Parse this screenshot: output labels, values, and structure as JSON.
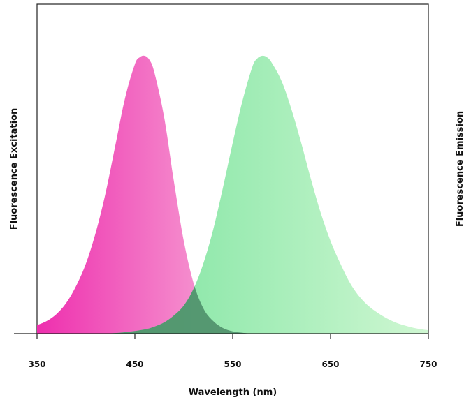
{
  "chart_data": {
    "type": "area",
    "xlabel": "Wavelength (nm)",
    "ylabel": "Fluorescence Excitation",
    "ylabel_right": "Fluorescence Emission",
    "xlim": [
      350,
      750
    ],
    "ylim": [
      0,
      1
    ],
    "x_ticks": [
      350,
      450,
      550,
      650,
      750
    ],
    "grid": false,
    "legend": "none",
    "series": [
      {
        "role": "excitation",
        "peak_x": 460,
        "peak_y": 0.99,
        "x": [
          350,
          360,
          370,
          380,
          390,
          400,
          410,
          420,
          430,
          440,
          450,
          455,
          460,
          465,
          470,
          480,
          490,
          500,
          510,
          520,
          530,
          540,
          550,
          560,
          570
        ],
        "values": [
          0.03,
          0.045,
          0.07,
          0.11,
          0.17,
          0.25,
          0.36,
          0.5,
          0.67,
          0.84,
          0.96,
          0.985,
          0.99,
          0.975,
          0.93,
          0.77,
          0.54,
          0.33,
          0.18,
          0.09,
          0.045,
          0.02,
          0.008,
          0.003,
          0.0
        ],
        "color_start": "#ee2fae",
        "color_end": "#f7b0d9"
      },
      {
        "role": "emission",
        "peak_x": 580,
        "peak_y": 0.99,
        "x": [
          420,
          440,
          460,
          470,
          480,
          490,
          500,
          510,
          520,
          530,
          540,
          550,
          560,
          570,
          575,
          580,
          585,
          590,
          600,
          610,
          620,
          630,
          640,
          650,
          660,
          670,
          680,
          690,
          700,
          710,
          720,
          730,
          740,
          750
        ],
        "values": [
          0.0,
          0.005,
          0.015,
          0.025,
          0.04,
          0.065,
          0.1,
          0.16,
          0.25,
          0.37,
          0.52,
          0.68,
          0.83,
          0.95,
          0.98,
          0.99,
          0.985,
          0.965,
          0.9,
          0.8,
          0.68,
          0.55,
          0.43,
          0.33,
          0.25,
          0.18,
          0.13,
          0.095,
          0.07,
          0.05,
          0.035,
          0.025,
          0.017,
          0.012
        ],
        "color_start": "#7ae39e",
        "color_end": "#cff7d2"
      }
    ]
  },
  "style": {
    "overlap_color": "#4a8a66",
    "axis_color": "#222222"
  }
}
